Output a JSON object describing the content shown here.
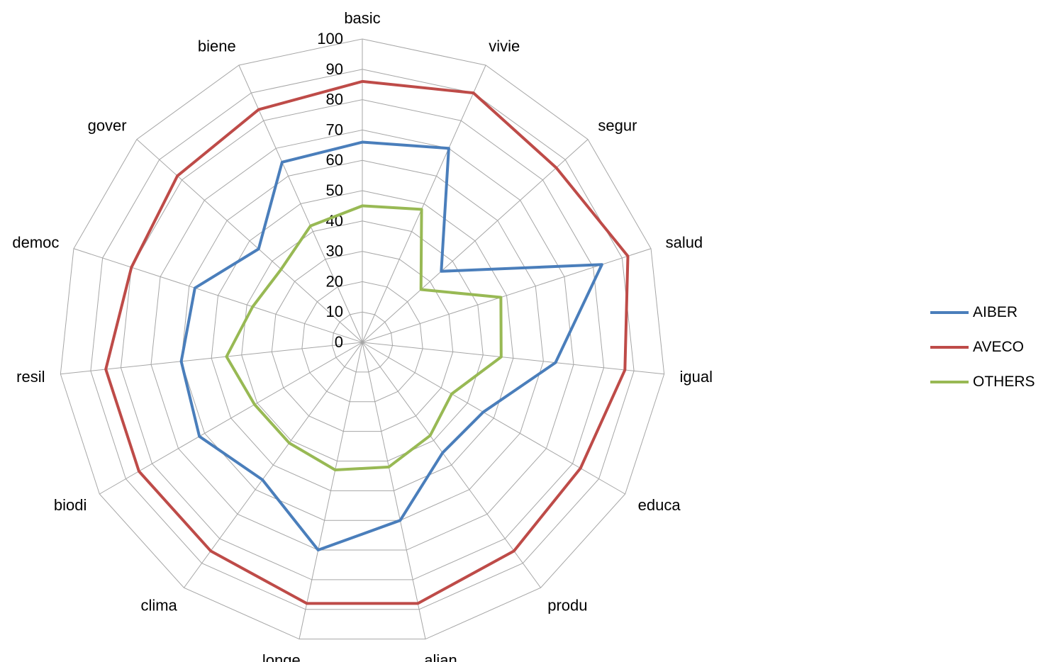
{
  "chart_data": {
    "type": "radar",
    "categories": [
      "basic",
      "vivie",
      "segur",
      "salud",
      "igual",
      "educa",
      "produ",
      "alian",
      "longe",
      "clima",
      "biodi",
      "resil",
      "democ",
      "gover",
      "biene"
    ],
    "rlim": [
      0,
      100
    ],
    "ticks": [
      0,
      10,
      20,
      30,
      40,
      50,
      60,
      70,
      80,
      90,
      100
    ],
    "grid": true,
    "legend_position": "right",
    "series": [
      {
        "name": "AIBER",
        "color": "#4A7EBB",
        "values": [
          66,
          70,
          35,
          83,
          64,
          46,
          45,
          60,
          70,
          56,
          62,
          60,
          58,
          46,
          65
        ]
      },
      {
        "name": "AVECO",
        "color": "#BE4B48",
        "values": [
          86,
          90,
          86,
          92,
          87,
          83,
          85,
          88,
          88,
          85,
          85,
          85,
          80,
          82,
          84
        ]
      },
      {
        "name": "OTHERS",
        "color": "#98B954",
        "values": [
          45,
          48,
          26,
          48,
          46,
          34,
          38,
          42,
          43,
          41,
          41,
          45,
          38,
          36,
          42
        ]
      }
    ]
  }
}
